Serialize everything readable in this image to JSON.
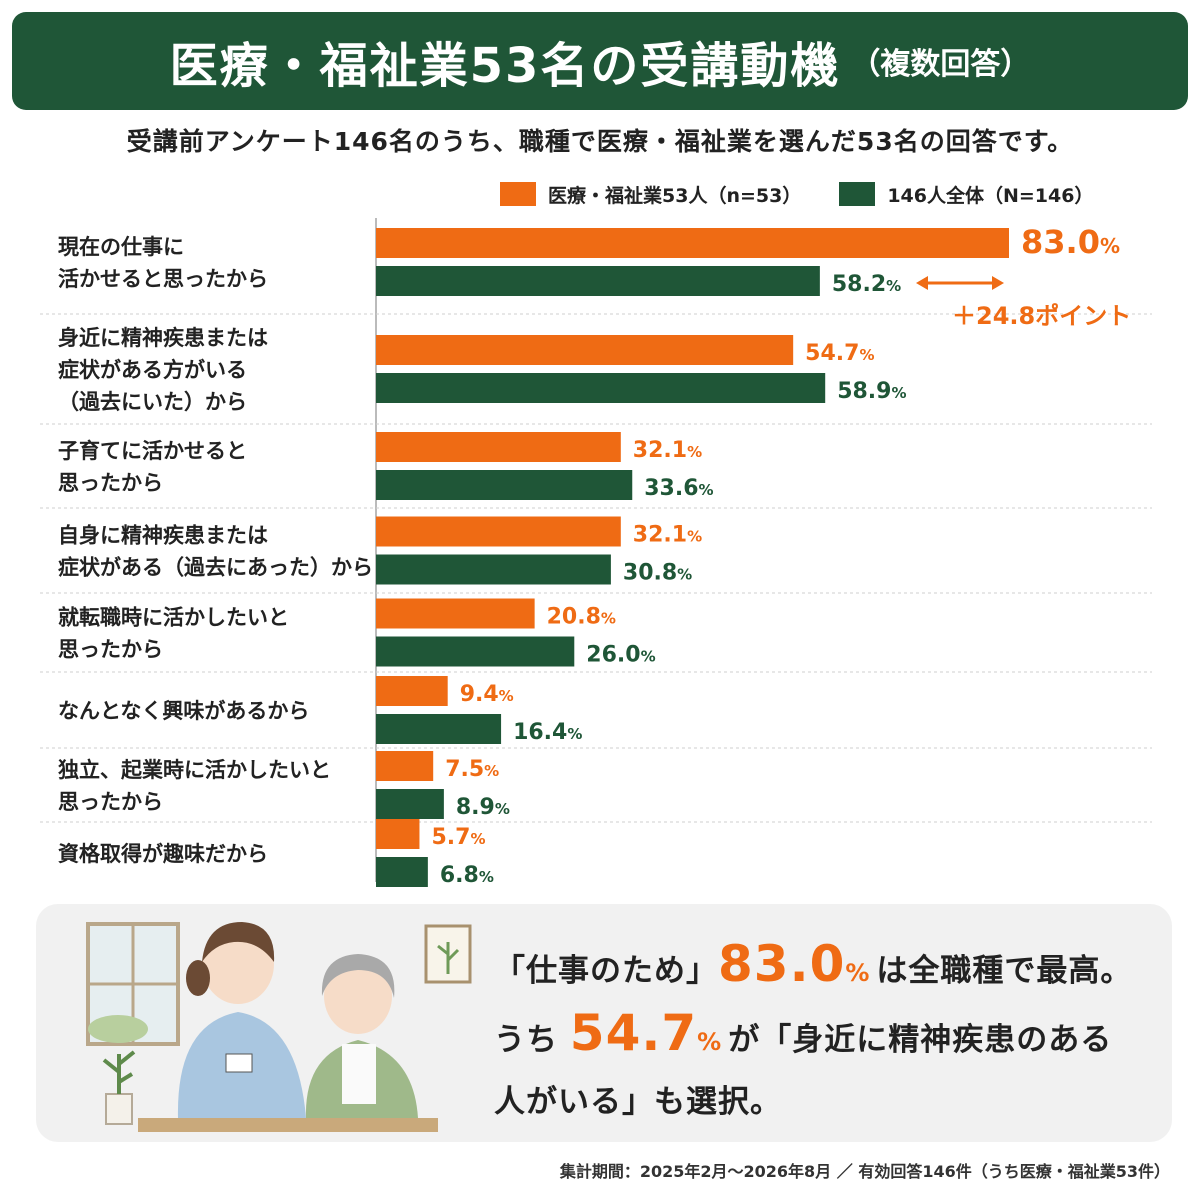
{
  "header": {
    "title": "医療・福祉業53名の受講動機",
    "title_suffix": "（複数回答）",
    "subtitle": "受講前アンケート146名のうち、職種で医療・福祉業を選んだ53名の回答です。"
  },
  "legend": {
    "series1": "医療・福祉業53人（n=53）",
    "series2": "146人全体（N=146）"
  },
  "colors": {
    "orange": "#ef6b14",
    "green": "#1f5637",
    "title_bg": "#1f5637"
  },
  "chart_data": {
    "type": "bar",
    "orientation": "horizontal",
    "categories": [
      [
        "現在の仕事に",
        "活かせると思ったから"
      ],
      [
        "身近に精神疾患または",
        "症状がある方がいる",
        "（過去にいた）から"
      ],
      [
        "子育てに活かせると",
        "思ったから"
      ],
      [
        "自身に精神疾患または",
        "症状がある（過去にあった）から"
      ],
      [
        "就転職時に活かしたいと",
        "思ったから"
      ],
      [
        "なんとなく興味があるから"
      ],
      [
        "独立、起業時に活かしたいと",
        "思ったから"
      ],
      [
        "資格取得が趣味だから"
      ]
    ],
    "series": [
      {
        "name": "医療・福祉業53人（n=53）",
        "values": [
          83.0,
          54.7,
          32.1,
          32.1,
          20.8,
          9.4,
          7.5,
          5.7
        ]
      },
      {
        "name": "146人全体（N=146）",
        "values": [
          58.2,
          58.9,
          33.6,
          30.8,
          26.0,
          16.4,
          8.9,
          6.8
        ]
      }
    ],
    "value_suffix": "%",
    "xlim": [
      0,
      100
    ],
    "grid": false,
    "legend_position": "top-right",
    "annotation": {
      "text": "＋24.8ポイント",
      "category_index": 0
    }
  },
  "highlight": {
    "line1_pre": "「仕事のため」",
    "line1_value": "83.0",
    "line1_post": "は全職種で最高。",
    "line2_pre": "うち",
    "line2_value": "54.7",
    "line2_post": "が「身近に精神疾患のある",
    "line3": "人がいる」も選択。",
    "pct": "%"
  },
  "footer": "集計期間：2025年2月〜2026年8月 ／ 有効回答146件（うち医療・福祉業53件）"
}
